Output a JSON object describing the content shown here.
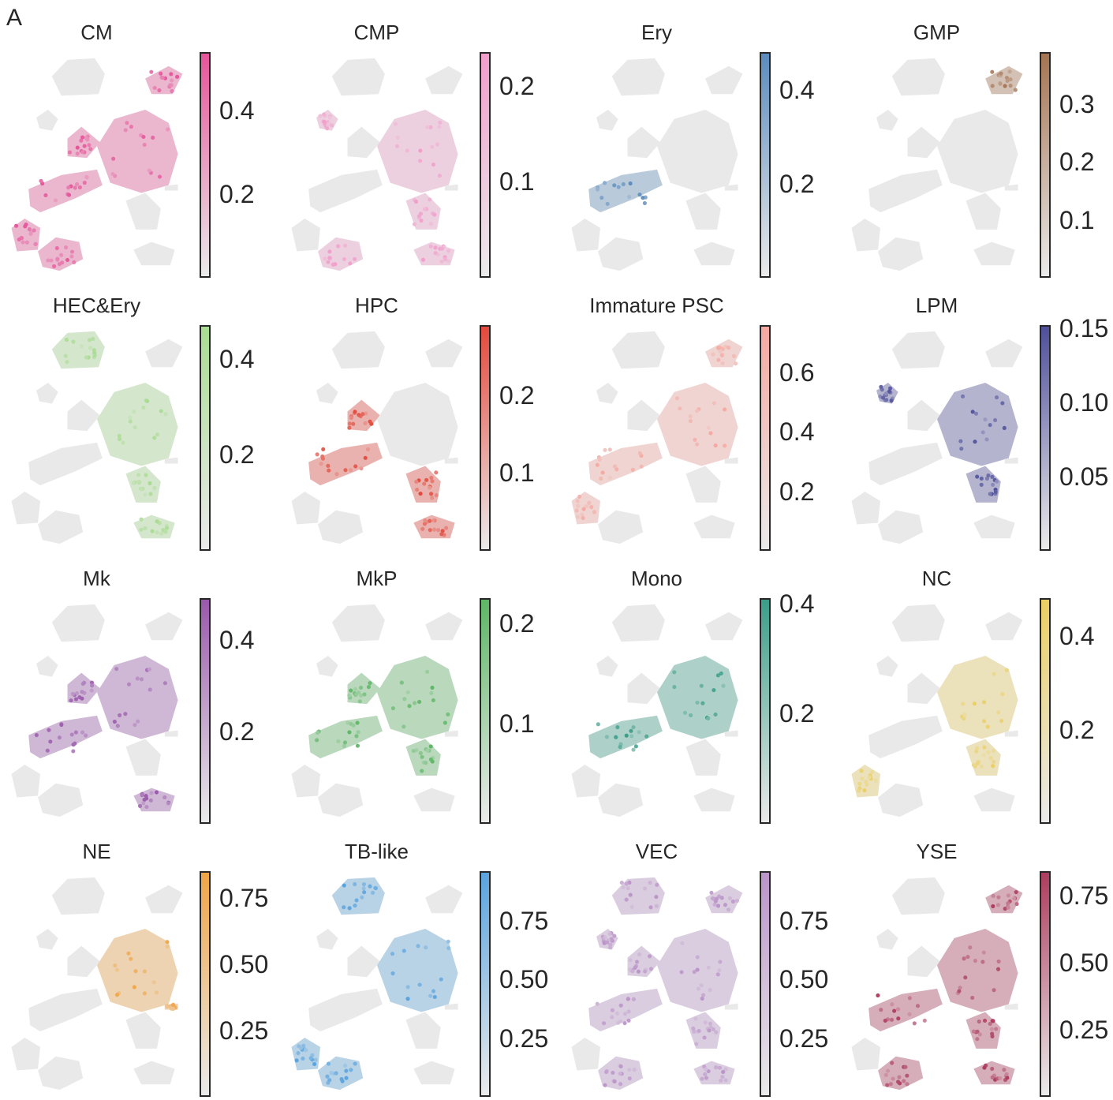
{
  "panel_label": "A",
  "chart_data": [
    {
      "type": "heatmap",
      "title": "CM",
      "color": "#e7559a",
      "cmap": [
        "#ebebeb",
        "#e7559a"
      ],
      "clim": [
        0,
        0.54
      ],
      "ticks": [
        0.2,
        0.4
      ],
      "tick_labels": [
        "0.2",
        "0.4"
      ],
      "hot_regions": [
        "upper-left cluster",
        "bottom-left clusters",
        "central cluster"
      ]
    },
    {
      "type": "heatmap",
      "title": "CMP",
      "color": "#f19ecb",
      "cmap": [
        "#ebebeb",
        "#f19ecb"
      ],
      "clim": [
        0,
        0.235
      ],
      "ticks": [
        0.1,
        0.2
      ],
      "tick_labels": [
        "0.1",
        "0.2"
      ],
      "hot_regions": [
        "central cluster",
        "bottom clusters"
      ]
    },
    {
      "type": "heatmap",
      "title": "Ery",
      "color": "#5b8cbe",
      "cmap": [
        "#ebebeb",
        "#5b8cbe"
      ],
      "clim": [
        0,
        0.48
      ],
      "ticks": [
        0.2,
        0.4
      ],
      "tick_labels": [
        "0.2",
        "0.4"
      ],
      "hot_regions": [
        "left elongated cluster"
      ]
    },
    {
      "type": "heatmap",
      "title": "GMP",
      "color": "#a57452",
      "cmap": [
        "#ebebeb",
        "#a57452"
      ],
      "clim": [
        0,
        0.39
      ],
      "ticks": [
        0.1,
        0.2,
        0.3
      ],
      "tick_labels": [
        "0.1",
        "0.2",
        "0.3"
      ],
      "hot_regions": [
        "top-right cluster"
      ]
    },
    {
      "type": "heatmap",
      "title": "HEC&Ery",
      "color": "#a9dc92",
      "cmap": [
        "#ebebeb",
        "#a9dc92"
      ],
      "clim": [
        0,
        0.47
      ],
      "ticks": [
        0.2,
        0.4
      ],
      "tick_labels": [
        "0.2",
        "0.4"
      ],
      "hot_regions": [
        "top-left cluster",
        "central cluster",
        "bottom-right cluster"
      ]
    },
    {
      "type": "heatmap",
      "title": "HPC",
      "color": "#e4493c",
      "cmap": [
        "#ebebeb",
        "#e4493c"
      ],
      "clim": [
        0,
        0.29
      ],
      "ticks": [
        0.1,
        0.2
      ],
      "tick_labels": [
        "0.1",
        "0.2"
      ],
      "hot_regions": [
        "left elongated cluster",
        "bottom-right cluster"
      ]
    },
    {
      "type": "heatmap",
      "title": "Immature PSC",
      "color": "#f6a8a0",
      "cmap": [
        "#ebebeb",
        "#f6a8a0"
      ],
      "clim": [
        0,
        0.76
      ],
      "ticks": [
        0.2,
        0.4,
        0.6
      ],
      "tick_labels": [
        "0.2",
        "0.4",
        "0.6"
      ],
      "hot_regions": [
        "central cluster",
        "top-right cluster"
      ]
    },
    {
      "type": "heatmap",
      "title": "LPM",
      "color": "#4f4f9b",
      "cmap": [
        "#ebebeb",
        "#4f4f9b"
      ],
      "clim": [
        0,
        0.152
      ],
      "ticks": [
        0.05,
        0.1,
        0.15
      ],
      "tick_labels": [
        "0.05",
        "0.10",
        "0.15"
      ],
      "hot_regions": [
        "lower-middle cluster",
        "small left cluster"
      ]
    },
    {
      "type": "heatmap",
      "title": "Mk",
      "color": "#9a59ac",
      "cmap": [
        "#ebebeb",
        "#9a59ac"
      ],
      "clim": [
        0,
        0.49
      ],
      "ticks": [
        0.2,
        0.4
      ],
      "tick_labels": [
        "0.2",
        "0.4"
      ],
      "hot_regions": [
        "left elongated cluster",
        "bottom-right cluster"
      ]
    },
    {
      "type": "heatmap",
      "title": "MkP",
      "color": "#5db665",
      "cmap": [
        "#ebebeb",
        "#5db665"
      ],
      "clim": [
        0,
        0.225
      ],
      "ticks": [
        0.1,
        0.2
      ],
      "tick_labels": [
        "0.1",
        "0.2"
      ],
      "hot_regions": [
        "central cluster",
        "left elongated cluster"
      ]
    },
    {
      "type": "heatmap",
      "title": "Mono",
      "color": "#3b9e88",
      "cmap": [
        "#ebebeb",
        "#3b9e88"
      ],
      "clim": [
        0,
        0.41
      ],
      "ticks": [
        0.2,
        0.4
      ],
      "tick_labels": [
        "0.2",
        "0.4"
      ],
      "hot_regions": [
        "central cluster right edge"
      ]
    },
    {
      "type": "heatmap",
      "title": "NC",
      "color": "#ebcf63",
      "cmap": [
        "#ebebeb",
        "#ebcf63"
      ],
      "clim": [
        0,
        0.48
      ],
      "ticks": [
        0.2,
        0.4
      ],
      "tick_labels": [
        "0.2",
        "0.4"
      ],
      "hot_regions": [
        "central cluster",
        "bottom-left cluster"
      ]
    },
    {
      "type": "heatmap",
      "title": "NE",
      "color": "#f0a546",
      "cmap": [
        "#ebebeb",
        "#f0a546"
      ],
      "clim": [
        0,
        0.85
      ],
      "ticks": [
        0.25,
        0.5,
        0.75
      ],
      "tick_labels": [
        "0.25",
        "0.50",
        "0.75"
      ],
      "hot_regions": [
        "central cluster"
      ]
    },
    {
      "type": "heatmap",
      "title": "TB-like",
      "color": "#5aa4de",
      "cmap": [
        "#ebebeb",
        "#5aa4de"
      ],
      "clim": [
        0,
        0.96
      ],
      "ticks": [
        0.25,
        0.5,
        0.75
      ],
      "tick_labels": [
        "0.25",
        "0.50",
        "0.75"
      ],
      "hot_regions": [
        "top-left cluster",
        "bottom-left cluster"
      ]
    },
    {
      "type": "heatmap",
      "title": "VEC",
      "color": "#bb94c9",
      "cmap": [
        "#ebebeb",
        "#bb94c9"
      ],
      "clim": [
        0,
        0.96
      ],
      "ticks": [
        0.25,
        0.5,
        0.75
      ],
      "tick_labels": [
        "0.25",
        "0.50",
        "0.75"
      ],
      "hot_regions": [
        "all clusters"
      ]
    },
    {
      "type": "heatmap",
      "title": "YSE",
      "color": "#ad3d5e",
      "cmap": [
        "#ebebeb",
        "#ad3d5e"
      ],
      "clim": [
        0,
        0.84
      ],
      "ticks": [
        0.25,
        0.5,
        0.75
      ],
      "tick_labels": [
        "0.25",
        "0.50",
        "0.75"
      ],
      "hot_regions": [
        "left elongated cluster",
        "top-right cluster",
        "central cluster"
      ]
    }
  ]
}
